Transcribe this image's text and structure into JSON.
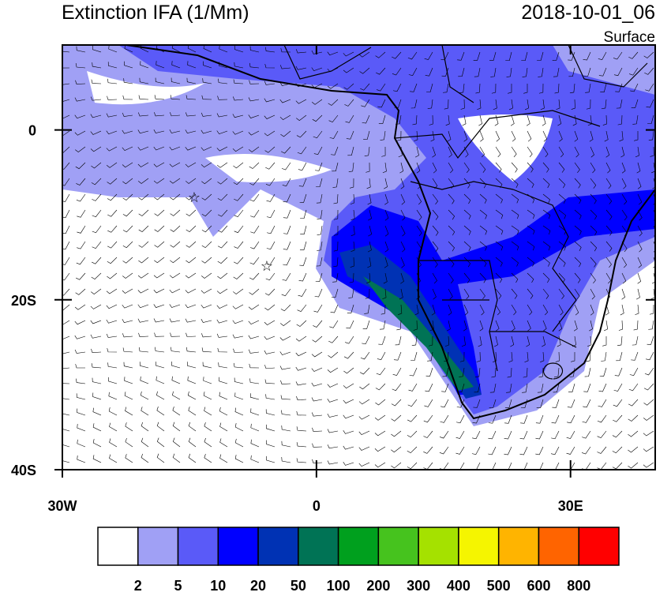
{
  "header": {
    "title": "Extinction IFA (1/Mm)",
    "time": "2018-10-01_06",
    "level": "Surface"
  },
  "map": {
    "xlim": [
      -30,
      40
    ],
    "ylim": [
      -40,
      10
    ],
    "xticks": [
      {
        "value": -30,
        "label": "30W"
      },
      0,
      {
        "value": 30,
        "label": "30E"
      }
    ],
    "yticks": [
      0,
      {
        "value": -20,
        "label": "20S"
      },
      {
        "value": -40,
        "label": "40S"
      }
    ]
  },
  "colorbar": {
    "labels": [
      "2",
      "5",
      "10",
      "20",
      "50",
      "100",
      "200",
      "300",
      "400",
      "500",
      "600",
      "800"
    ],
    "colors": [
      "#ffffff",
      "#a0a0f5",
      "#5a5af8",
      "#0000ff",
      "#0032b4",
      "#007355",
      "#00a01e",
      "#46c31e",
      "#a5e100",
      "#f5f500",
      "#ffb400",
      "#ff6400",
      "#ff0000"
    ]
  }
}
